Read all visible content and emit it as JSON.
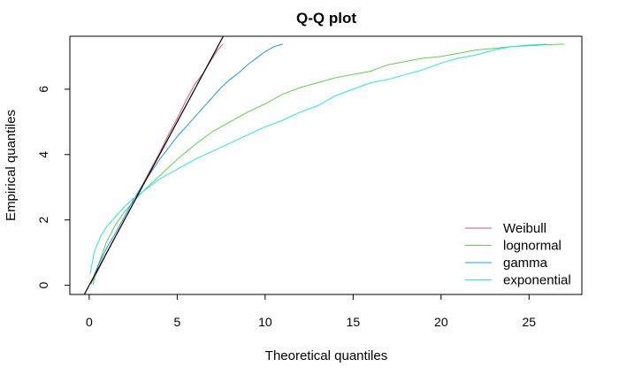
{
  "chart_data": {
    "type": "line",
    "title": "Q-Q plot",
    "xlabel": "Theoretical quantiles",
    "ylabel": "Empirical quantiles",
    "xlim": [
      -1.1,
      28.0
    ],
    "ylim": [
      -0.28,
      7.62
    ],
    "x_ticks": [
      0,
      5,
      10,
      15,
      20,
      25
    ],
    "y_ticks": [
      0,
      2,
      4,
      6
    ],
    "reference_line": {
      "slope": 1.0,
      "intercept": 0.0,
      "color": "#000000"
    },
    "legend_position": "bottom-right",
    "series": [
      {
        "name": "Weibull",
        "color": "#DF536B",
        "x": [
          0.1,
          0.5,
          1.0,
          1.5,
          2.0,
          2.5,
          3.0,
          3.5,
          4.0,
          4.5,
          5.0,
          5.5,
          6.0,
          6.5,
          7.0,
          7.3,
          7.6
        ],
        "y": [
          0.05,
          0.45,
          1.0,
          1.5,
          2.0,
          2.5,
          3.05,
          3.55,
          4.05,
          4.6,
          5.1,
          5.65,
          6.15,
          6.5,
          6.95,
          7.2,
          7.38
        ]
      },
      {
        "name": "lognormal",
        "color": "#61D04F",
        "x": [
          0.2,
          0.5,
          1.0,
          1.5,
          2.0,
          2.5,
          3.0,
          4.0,
          5.0,
          6.0,
          7.0,
          8.0,
          9.0,
          10.0,
          11.0,
          12.0,
          13.0,
          14.0,
          15.0,
          16.0,
          17.0,
          18.0,
          19.0,
          20.0,
          21.0,
          22.0,
          23.0,
          24.0,
          25.0,
          26.0,
          27.0
        ],
        "y": [
          0.0,
          0.6,
          1.35,
          1.85,
          2.25,
          2.55,
          2.85,
          3.35,
          3.85,
          4.3,
          4.7,
          5.0,
          5.3,
          5.55,
          5.85,
          6.05,
          6.2,
          6.35,
          6.45,
          6.55,
          6.75,
          6.85,
          6.95,
          7.0,
          7.1,
          7.2,
          7.25,
          7.3,
          7.33,
          7.36,
          7.38
        ]
      },
      {
        "name": "gamma",
        "color": "#2297E6",
        "x": [
          0.1,
          0.5,
          1.0,
          1.5,
          2.0,
          2.5,
          3.0,
          3.5,
          4.0,
          4.5,
          5.0,
          5.5,
          6.0,
          6.5,
          7.0,
          7.5,
          8.0,
          8.5,
          9.0,
          9.5,
          10.0,
          10.5,
          11.0
        ],
        "y": [
          0.05,
          0.6,
          1.15,
          1.6,
          2.1,
          2.6,
          3.05,
          3.45,
          3.85,
          4.2,
          4.55,
          4.85,
          5.15,
          5.45,
          5.75,
          6.05,
          6.3,
          6.5,
          6.75,
          6.95,
          7.15,
          7.3,
          7.38
        ]
      },
      {
        "name": "exponential",
        "color": "#28E2E5",
        "x": [
          0.05,
          0.3,
          0.7,
          1.0,
          1.5,
          2.0,
          2.5,
          3.0,
          4.0,
          5.0,
          6.0,
          7.0,
          8.0,
          9.0,
          10.0,
          11.0,
          12.0,
          13.0,
          14.0,
          15.0,
          16.0,
          17.0,
          18.0,
          19.0,
          20.0,
          21.0,
          22.0,
          23.0,
          24.0,
          25.0,
          26.0
        ],
        "y": [
          0.35,
          1.05,
          1.55,
          1.8,
          2.1,
          2.4,
          2.65,
          2.85,
          3.25,
          3.55,
          3.85,
          4.1,
          4.35,
          4.6,
          4.85,
          5.05,
          5.3,
          5.5,
          5.8,
          6.0,
          6.2,
          6.3,
          6.45,
          6.6,
          6.8,
          6.95,
          7.05,
          7.2,
          7.3,
          7.35,
          7.38
        ]
      }
    ]
  }
}
